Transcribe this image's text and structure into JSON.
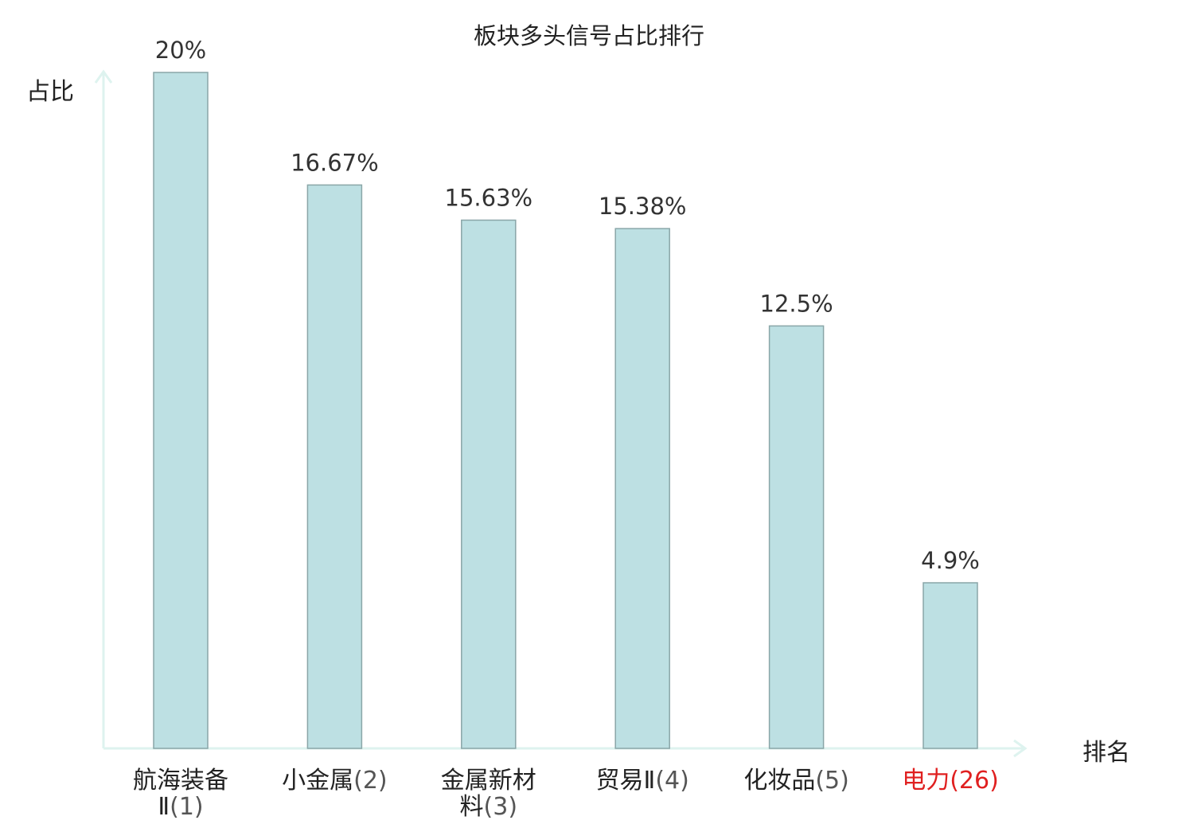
{
  "chart_data": {
    "type": "bar",
    "title": "板块多头信号占比排行",
    "ylabel": "占比",
    "xlabel": "排名",
    "categories": [
      {
        "name_lines": [
          "航海装备",
          "Ⅱ"
        ],
        "rank": "(1)"
      },
      {
        "name_lines": [
          "小金属"
        ],
        "rank": "(2)"
      },
      {
        "name_lines": [
          "金属新材",
          "料"
        ],
        "rank": "(3)"
      },
      {
        "name_lines": [
          "贸易Ⅱ"
        ],
        "rank": "(4)"
      },
      {
        "name_lines": [
          "化妆品"
        ],
        "rank": "(5)"
      },
      {
        "name_lines": [
          "电力"
        ],
        "rank": "(26)"
      }
    ],
    "values": [
      20,
      16.67,
      15.63,
      15.38,
      12.5,
      4.9
    ],
    "value_labels": [
      "20%",
      "16.67%",
      "15.63%",
      "15.38%",
      "12.5%",
      "4.9%"
    ],
    "highlight_index": 5,
    "ylim": [
      0,
      20
    ],
    "grid": false,
    "colors": {
      "bar_fill": "#bde0e3",
      "bar_stroke": "#8aa6a8",
      "axis": "#def3ef",
      "highlight_text": "#e02020"
    }
  }
}
